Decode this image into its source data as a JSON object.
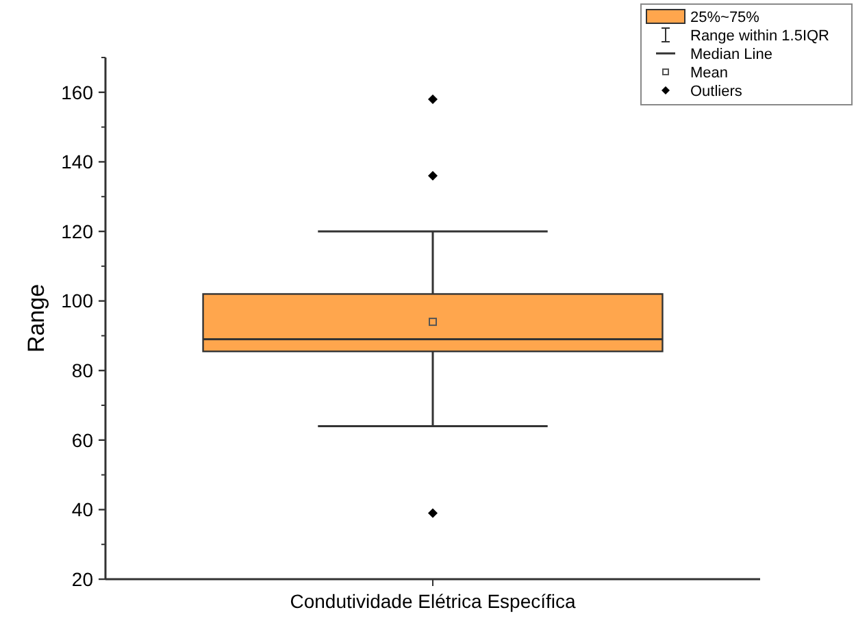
{
  "chart_data": {
    "type": "box",
    "ylabel": "Range",
    "categories": [
      "Condutividade Elétrica Específica"
    ],
    "series": [
      {
        "name": "25%~75%",
        "color": "#ffa64d",
        "boxes": [
          {
            "low": 64,
            "q1": 85.5,
            "median": 89,
            "q3": 102,
            "high": 120,
            "mean": 94,
            "outliers": [
              158,
              136,
              39
            ]
          }
        ]
      }
    ],
    "ylim": [
      20,
      170
    ],
    "yticks": [
      20,
      40,
      60,
      80,
      100,
      120,
      140,
      160
    ],
    "grid": false,
    "legend": "top right",
    "annotations": [
      "Range within 1.5IQR",
      "Median Line",
      "Mean",
      "Outliers"
    ]
  }
}
